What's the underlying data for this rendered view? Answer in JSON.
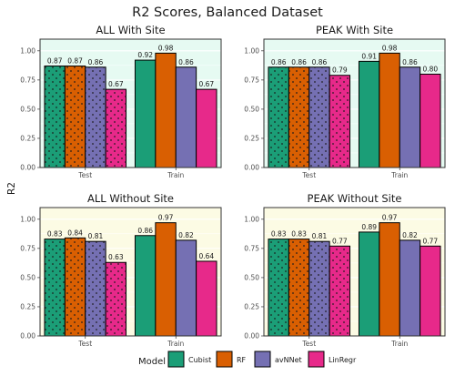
{
  "chart_data": {
    "type": "bar",
    "title": "R2 Scores, Balanced Dataset",
    "ylabel": "R2",
    "xlabel": "",
    "ylim": [
      0,
      1.1
    ],
    "yticks": [
      "0.00",
      "0.25",
      "0.50",
      "0.75",
      "1.00"
    ],
    "categories": [
      "Test",
      "Train"
    ],
    "legend": {
      "title": "Model",
      "placement": "bottom",
      "entries": [
        {
          "name": "Cubist",
          "color": "#1b9e77"
        },
        {
          "name": "RF",
          "color": "#d95f02"
        },
        {
          "name": "avNNet",
          "color": "#7570b3"
        },
        {
          "name": "LinRegr",
          "color": "#e7298a"
        }
      ]
    },
    "panel_backgrounds": {
      "with_site": "#e6faf2",
      "without_site": "#fcfbe4"
    },
    "pattern_on": "Test",
    "panels": [
      {
        "title": "ALL With Site",
        "background": "with_site",
        "series": [
          {
            "name": "Cubist",
            "values": [
              0.87,
              0.92
            ],
            "labels": [
              "0.87",
              "0.92"
            ]
          },
          {
            "name": "RF",
            "values": [
              0.87,
              0.98
            ],
            "labels": [
              "0.87",
              "0.98"
            ]
          },
          {
            "name": "avNNet",
            "values": [
              0.86,
              0.86
            ],
            "labels": [
              "0.86",
              "0.86"
            ]
          },
          {
            "name": "LinRegr",
            "values": [
              0.67,
              0.67
            ],
            "labels": [
              "0.67",
              "0.67"
            ]
          }
        ]
      },
      {
        "title": "PEAK With Site",
        "background": "with_site",
        "series": [
          {
            "name": "Cubist",
            "values": [
              0.86,
              0.91
            ],
            "labels": [
              "0.86",
              "0.91"
            ]
          },
          {
            "name": "RF",
            "values": [
              0.86,
              0.98
            ],
            "labels": [
              "0.86",
              "0.98"
            ]
          },
          {
            "name": "avNNet",
            "values": [
              0.86,
              0.86
            ],
            "labels": [
              "0.86",
              "0.86"
            ]
          },
          {
            "name": "LinRegr",
            "values": [
              0.79,
              0.8
            ],
            "labels": [
              "0.79",
              "0.80"
            ]
          }
        ]
      },
      {
        "title": "ALL Without Site",
        "background": "without_site",
        "series": [
          {
            "name": "Cubist",
            "values": [
              0.83,
              0.86
            ],
            "labels": [
              "0.83",
              "0.86"
            ]
          },
          {
            "name": "RF",
            "values": [
              0.84,
              0.97
            ],
            "labels": [
              "0.84",
              "0.97"
            ]
          },
          {
            "name": "avNNet",
            "values": [
              0.81,
              0.82
            ],
            "labels": [
              "0.81",
              "0.82"
            ]
          },
          {
            "name": "LinRegr",
            "values": [
              0.63,
              0.64
            ],
            "labels": [
              "0.63",
              "0.64"
            ]
          }
        ]
      },
      {
        "title": "PEAK Without Site",
        "background": "without_site",
        "series": [
          {
            "name": "Cubist",
            "values": [
              0.83,
              0.89
            ],
            "labels": [
              "0.83",
              "0.89"
            ]
          },
          {
            "name": "RF",
            "values": [
              0.83,
              0.97
            ],
            "labels": [
              "0.83",
              "0.97"
            ]
          },
          {
            "name": "avNNet",
            "values": [
              0.81,
              0.82
            ],
            "labels": [
              "0.81",
              "0.82"
            ]
          },
          {
            "name": "LinRegr",
            "values": [
              0.77,
              0.77
            ],
            "labels": [
              "0.77",
              "0.77"
            ]
          }
        ]
      }
    ]
  }
}
